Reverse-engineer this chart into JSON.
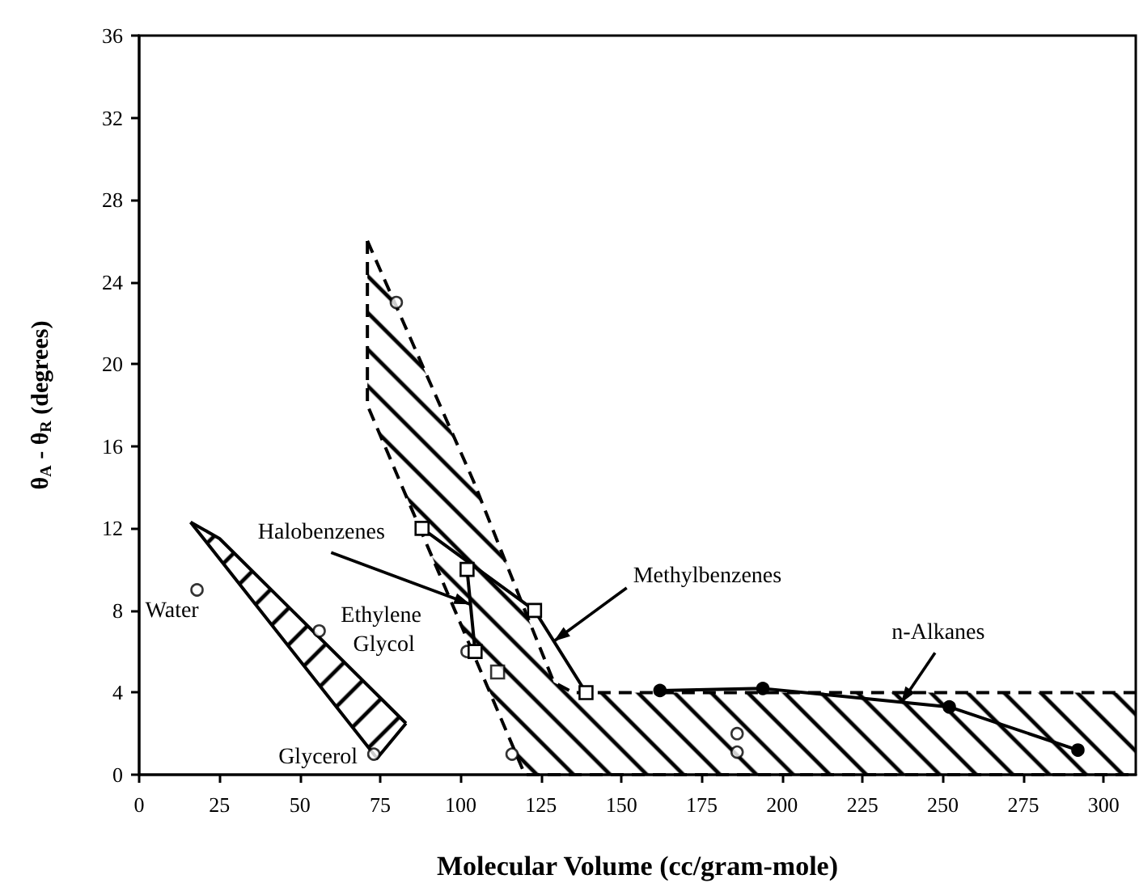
{
  "chart_data": {
    "type": "scatter",
    "xlabel": "Molecular Volume (cc/gram-mole)",
    "ylabel": "θ$_{A}$ - θ$_{R}$ (degrees)",
    "xlim": [
      0,
      310
    ],
    "xticks": [
      0,
      25,
      50,
      75,
      100,
      125,
      150,
      175,
      200,
      225,
      250,
      275,
      300
    ],
    "ylim": [
      0,
      36
    ],
    "yticks": [
      0,
      4,
      8,
      12,
      16,
      20,
      24,
      28,
      32,
      36
    ],
    "grid": false,
    "series": [
      {
        "type": "line",
        "line_style": "solid",
        "color": "#000000",
        "x": [
          16,
          25,
          74,
          83
        ],
        "values": [
          12.3,
          11.5,
          3.9,
          2.5
        ]
      },
      {
        "type": "line",
        "line_style": "solid",
        "color": "#000000",
        "x": [
          16,
          74,
          83
        ],
        "values": [
          12.3,
          0.8,
          2.5
        ]
      },
      {
        "type": "line",
        "line_style": "dashed",
        "color": "#000000",
        "x": [
          71,
          104,
          120,
          129,
          135,
          310
        ],
        "values": [
          26,
          14.3,
          8,
          4.5,
          4,
          4
        ]
      },
      {
        "type": "line",
        "line_style": "dashed",
        "color": "#000000",
        "x": [
          71,
          71,
          120,
          310
        ],
        "values": [
          26,
          18,
          0,
          0
        ]
      },
      {
        "marker": "circle",
        "color": "#000000",
        "x": [
          18,
          56,
          73,
          80,
          116,
          102,
          186,
          186
        ],
        "values": [
          9,
          7,
          1,
          23,
          1,
          6,
          2,
          1.1
        ]
      },
      {
        "type": "line",
        "marker": "square",
        "color": "#000000",
        "x": [
          88,
          123,
          139
        ],
        "values": [
          12,
          8,
          4
        ]
      },
      {
        "type": "line",
        "marker": "square",
        "color": "#000000",
        "x": [
          102,
          104.5
        ],
        "values": [
          10,
          6
        ]
      },
      {
        "marker": "square",
        "color": "#000000",
        "x": [
          111.5
        ],
        "values": [
          5
        ]
      },
      {
        "type": "line",
        "marker": "circle",
        "color": "#000000",
        "x": [
          162,
          194,
          252,
          292
        ],
        "values": [
          4.1,
          4.2,
          3.3,
          1.2
        ]
      }
    ],
    "annotations": [
      {
        "text": "Water",
        "x": 18,
        "y": 9
      },
      {
        "text": "Ethylene Glycol",
        "x": 56,
        "y": 7
      },
      {
        "text": "Glycerol",
        "x": 73,
        "y": 1
      },
      {
        "text": "Halobenzenes",
        "x": 103,
        "y": 8.3
      },
      {
        "text": "Methylbenzenes",
        "x": 129,
        "y": 6.5
      },
      {
        "text": "n-Alkanes",
        "x": 237,
        "y": 3.5
      }
    ]
  }
}
